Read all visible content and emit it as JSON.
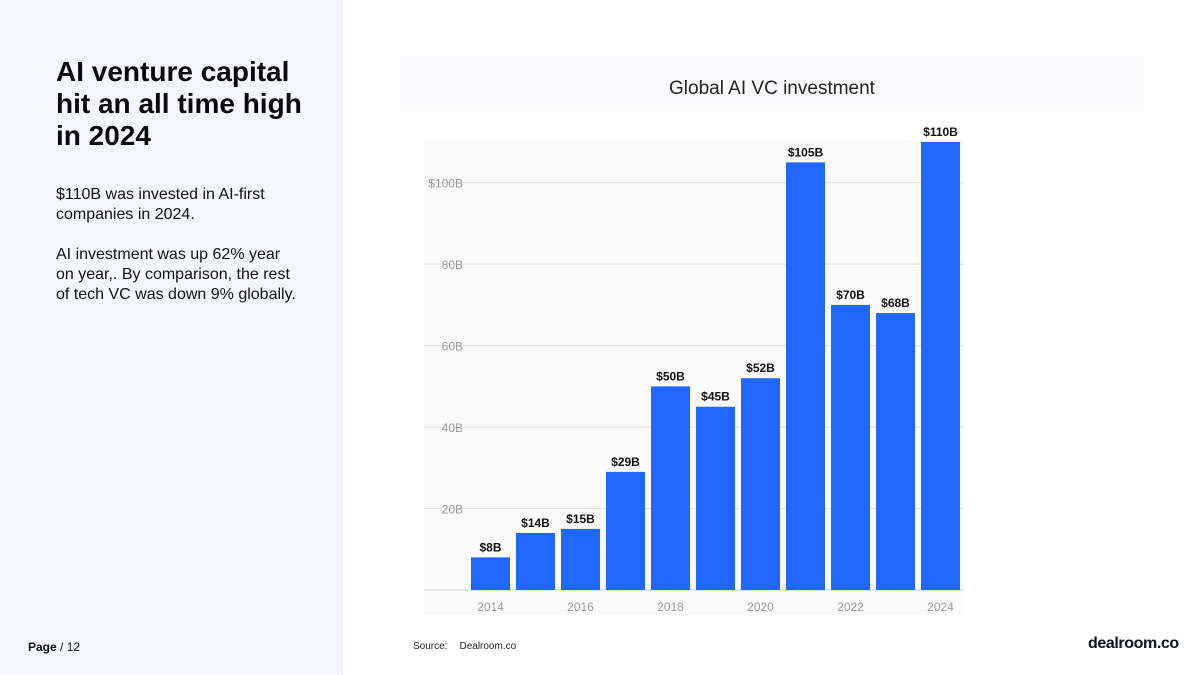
{
  "left": {
    "headline": "AI venture capital hit an all time high in 2024",
    "paragraph1": "$110B was invested in AI-first companies in 2024.",
    "paragraph2": "AI investment was up 62% year on year,. By comparison, the rest of tech VC was down 9% globally."
  },
  "footer": {
    "page_bold": "Page",
    "page_rest": " / 12",
    "source_label": "Source:",
    "source_value": "Dealroom.co",
    "brand": "dealroom.co"
  },
  "colors": {
    "bar": "#2167fb",
    "grid": "#e3e3e3",
    "tick_text": "#9a9a9a"
  },
  "chart_data": {
    "type": "bar",
    "title": "Global AI VC investment",
    "xlabel": "",
    "ylabel": "",
    "categories": [
      "2014",
      "2015",
      "2016",
      "2017",
      "2018",
      "2019",
      "2020",
      "2021",
      "2022",
      "2023",
      "2024"
    ],
    "values": [
      8,
      14,
      15,
      29,
      50,
      45,
      52,
      105,
      70,
      68,
      110
    ],
    "data_labels": [
      "$8B",
      "$14B",
      "$15B",
      "$29B",
      "$50B",
      "$45B",
      "$52B",
      "$105B",
      "$70B",
      "$68B",
      "$110B"
    ],
    "x_tick_labels": [
      "2014",
      "2016",
      "2018",
      "2020",
      "2022",
      "2024"
    ],
    "y_ticks": [
      20,
      40,
      60,
      80,
      100
    ],
    "y_tick_labels": [
      "20B",
      "40B",
      "60B",
      "80B",
      "$100B"
    ],
    "ylim": [
      0,
      110
    ],
    "grid": true
  }
}
